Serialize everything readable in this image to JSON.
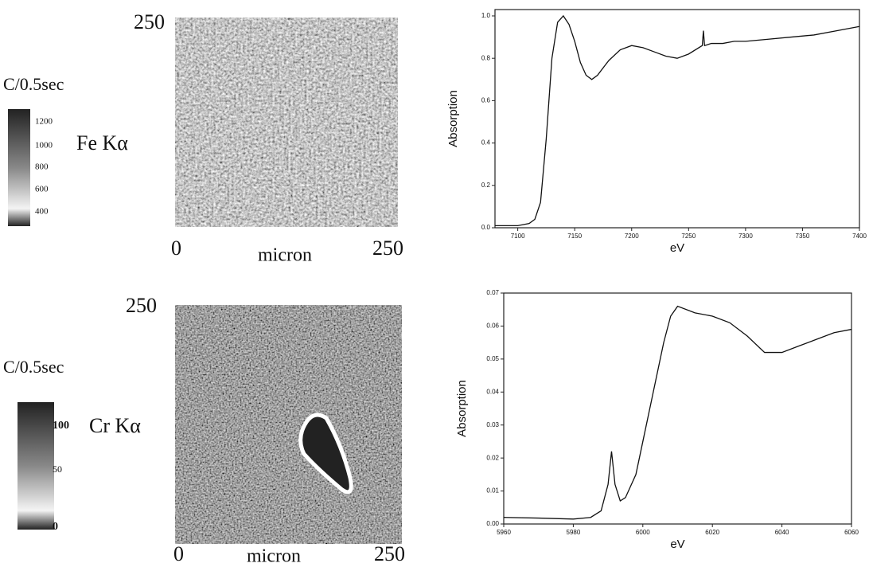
{
  "panels": [
    {
      "scale_top": "250",
      "unit": "C/0.5sec",
      "colorbar_labels": [
        "1200",
        "1000",
        "800",
        "600",
        "400"
      ],
      "element": "Fe Kα",
      "x_start": "0",
      "x_label": "micron",
      "x_end": "250"
    },
    {
      "scale_top": "250",
      "unit": "C/0.5sec",
      "colorbar_labels": [
        "100",
        "50",
        "0"
      ],
      "element": "Cr Kα",
      "x_start": "0",
      "x_label": "micron",
      "x_end": "250"
    }
  ],
  "chart_data": [
    {
      "type": "line",
      "x_label": "eV",
      "y_label": "Absorption",
      "color": "#111111",
      "x": [
        7080,
        7100,
        7110,
        7115,
        7120,
        7125,
        7130,
        7135,
        7140,
        7145,
        7150,
        7155,
        7160,
        7165,
        7170,
        7180,
        7190,
        7200,
        7210,
        7220,
        7230,
        7240,
        7250,
        7262,
        7263,
        7264,
        7270,
        7280,
        7290,
        7300,
        7320,
        7340,
        7360,
        7380,
        7400
      ],
      "values": [
        0.01,
        0.01,
        0.02,
        0.04,
        0.12,
        0.42,
        0.8,
        0.97,
        1.0,
        0.96,
        0.88,
        0.78,
        0.72,
        0.7,
        0.72,
        0.79,
        0.84,
        0.86,
        0.85,
        0.83,
        0.81,
        0.8,
        0.82,
        0.86,
        0.93,
        0.86,
        0.87,
        0.87,
        0.88,
        0.88,
        0.89,
        0.9,
        0.91,
        0.93,
        0.95
      ],
      "xlim": [
        7080,
        7400
      ],
      "ylim": [
        0,
        1.03
      ],
      "xticks": [
        7100,
        7150,
        7200,
        7250,
        7300,
        7350,
        7400
      ],
      "yticks": [
        {
          "value": 0,
          "label": "0.0"
        },
        0.2,
        0.4,
        0.6,
        0.8,
        {
          "value": 1,
          "label": "1.0"
        }
      ]
    },
    {
      "type": "line",
      "x_label": "eV",
      "y_label": "Absorption",
      "color": "#111111",
      "x": [
        5960,
        5970,
        5980,
        5985,
        5988,
        5990,
        5991,
        5992,
        5993.5,
        5995,
        5998,
        6000,
        6003,
        6006,
        6008,
        6010,
        6015,
        6020,
        6025,
        6030,
        6035,
        6040,
        6045,
        6050,
        6055,
        6060
      ],
      "values": [
        0.002,
        0.0018,
        0.0015,
        0.002,
        0.004,
        0.012,
        0.022,
        0.012,
        0.007,
        0.008,
        0.015,
        0.025,
        0.04,
        0.055,
        0.063,
        0.066,
        0.064,
        0.063,
        0.061,
        0.057,
        0.052,
        0.052,
        0.054,
        0.056,
        0.058,
        0.059
      ],
      "xlim": [
        5960,
        6060
      ],
      "ylim": [
        0,
        0.07
      ],
      "xticks": [
        5960,
        5980,
        6000,
        6020,
        6040,
        6060
      ],
      "yticks": [
        {
          "value": 0,
          "label": "0.00"
        },
        0.01,
        0.02,
        0.03,
        0.04,
        0.05,
        0.06,
        0.07
      ]
    }
  ]
}
